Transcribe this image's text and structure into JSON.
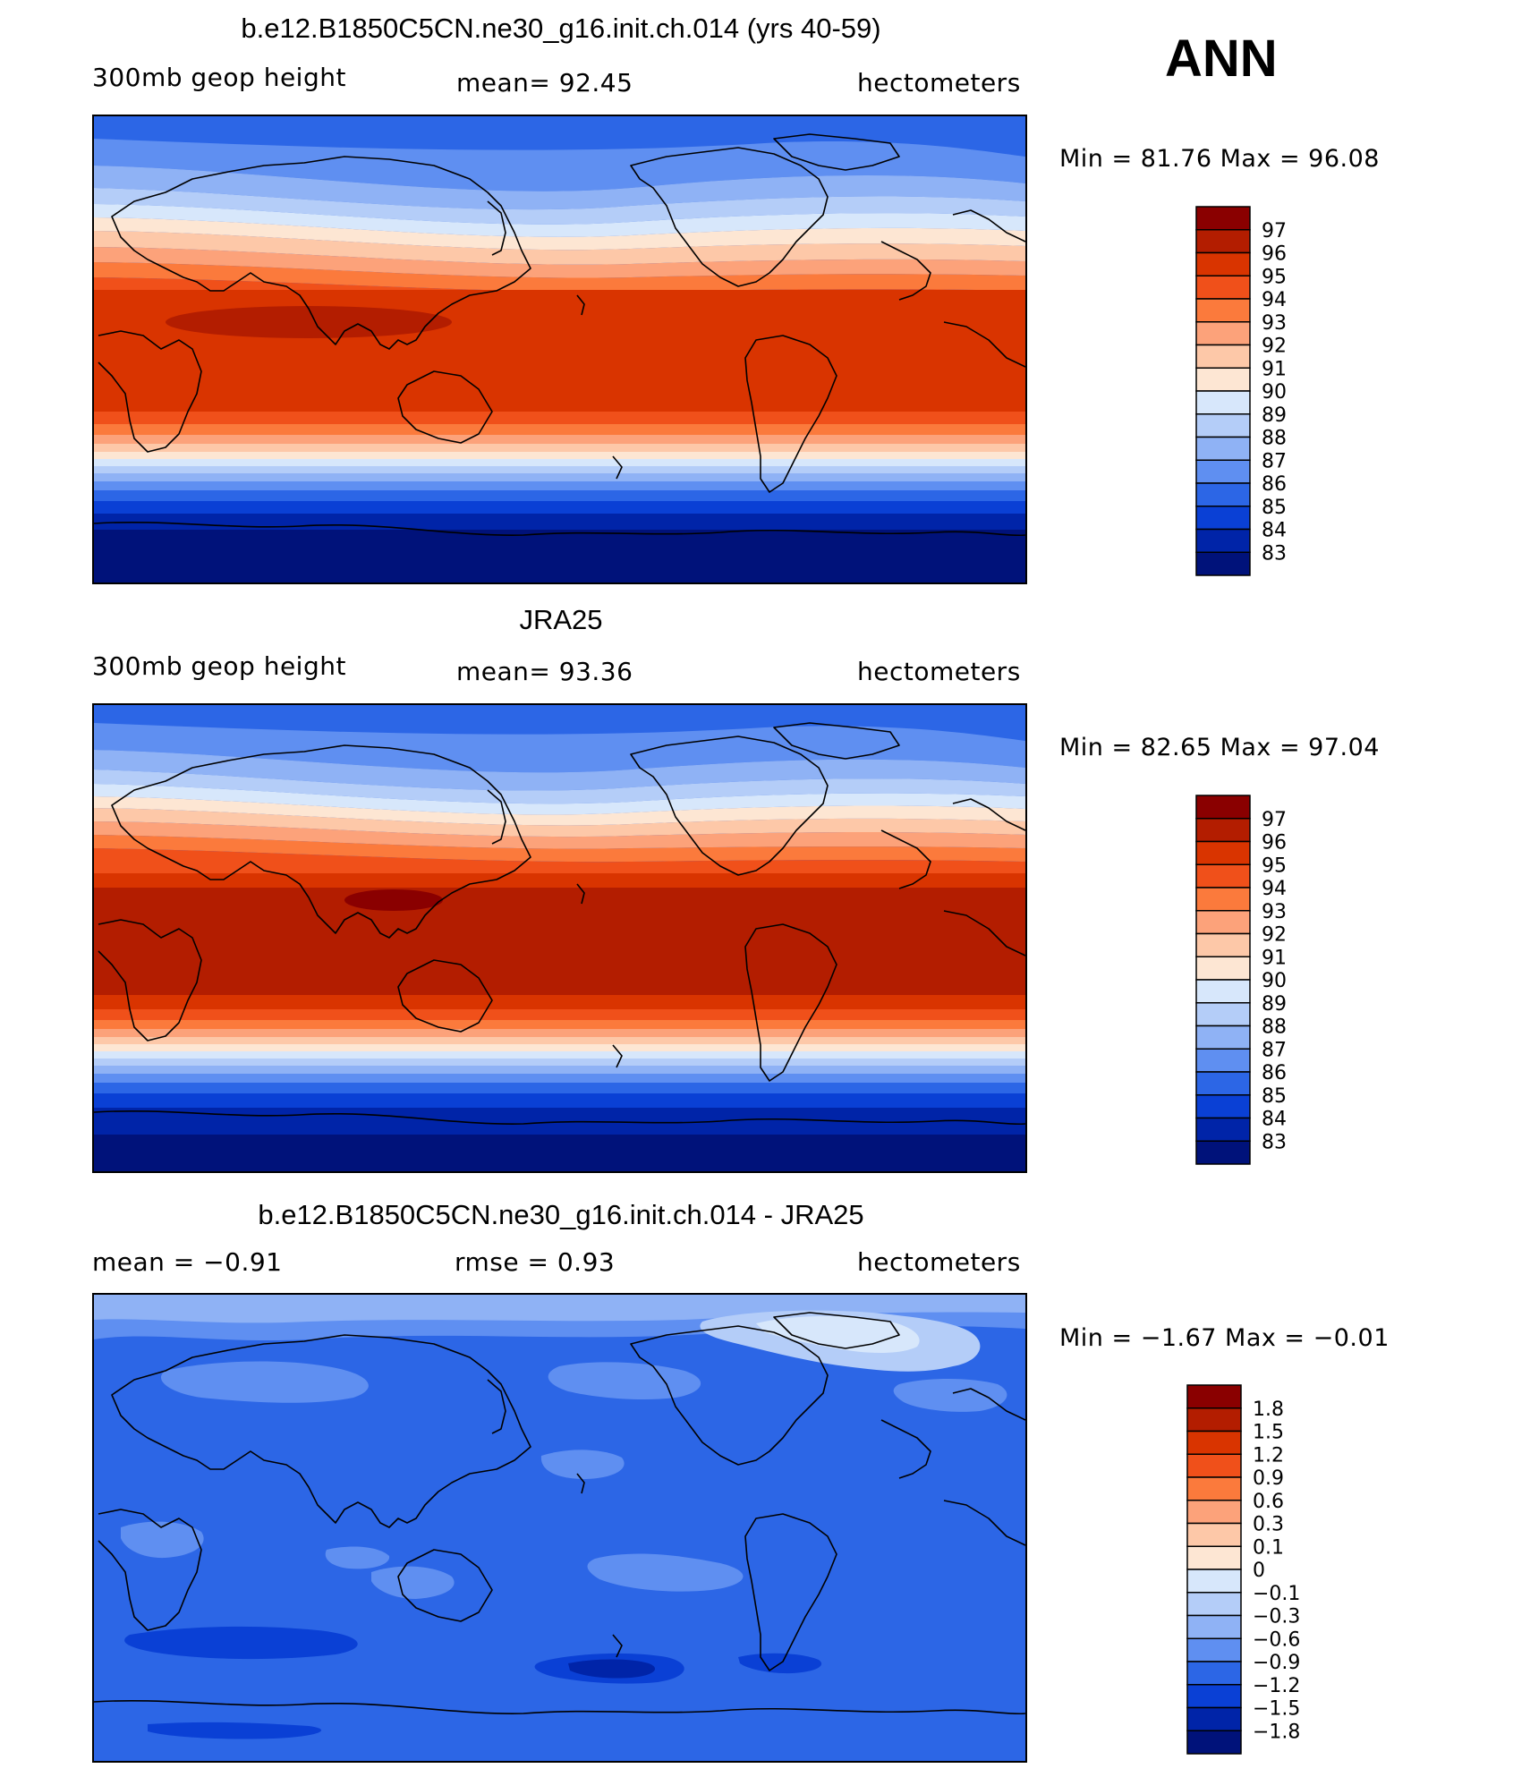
{
  "season": "ANN",
  "panels": [
    {
      "title": "b.e12.B1850C5CN.ne30_g16.init.ch.014 (yrs 40-59)",
      "left_label": "300mb geop height",
      "mid_label": "mean=   92.45",
      "right_label": "hectometers",
      "minmax": "Min =   81.76 Max =   96.08",
      "colorbar_labels": [
        "97",
        "96",
        "95",
        "94",
        "93",
        "92",
        "91",
        "90",
        "89",
        "88",
        "87",
        "86",
        "85",
        "84",
        "83"
      ],
      "colors": [
        "#8a0000",
        "#b31d00",
        "#d93400",
        "#f0501a",
        "#fb7a3c",
        "#fca27a",
        "#fdc8a8",
        "#fde6d3",
        "#d7e7fb",
        "#b4cdf8",
        "#8fb2f5",
        "#5f8ff1",
        "#2c66e6",
        "#0a40d5",
        "#0024a8",
        "#00127a"
      ]
    },
    {
      "title": "JRA25",
      "left_label": "300mb geop height",
      "mid_label": "mean=   93.36",
      "right_label": "hectometers",
      "minmax": "Min =   82.65 Max =   97.04",
      "colorbar_labels": [
        "97",
        "96",
        "95",
        "94",
        "93",
        "92",
        "91",
        "90",
        "89",
        "88",
        "87",
        "86",
        "85",
        "84",
        "83"
      ],
      "colors": [
        "#8a0000",
        "#b31d00",
        "#d93400",
        "#f0501a",
        "#fb7a3c",
        "#fca27a",
        "#fdc8a8",
        "#fde6d3",
        "#d7e7fb",
        "#b4cdf8",
        "#8fb2f5",
        "#5f8ff1",
        "#2c66e6",
        "#0a40d5",
        "#0024a8",
        "#00127a"
      ]
    },
    {
      "title": "b.e12.B1850C5CN.ne30_g16.init.ch.014 - JRA25",
      "left_label": "mean =   −0.91",
      "mid_label": "rmse =    0.93",
      "right_label": "hectometers",
      "minmax": "Min =   −1.67 Max =   −0.01",
      "colorbar_labels": [
        "1.8",
        "1.5",
        "1.2",
        "0.9",
        "0.6",
        "0.3",
        "0.1",
        "0",
        "−0.1",
        "−0.3",
        "−0.6",
        "−0.9",
        "−1.2",
        "−1.5",
        "−1.8"
      ],
      "colors": [
        "#8a0000",
        "#b31d00",
        "#d93400",
        "#f0501a",
        "#fb7a3c",
        "#fca27a",
        "#fdc8a8",
        "#fde6d3",
        "#d7e7fb",
        "#b4cdf8",
        "#8fb2f5",
        "#5f8ff1",
        "#2c66e6",
        "#0a40d5",
        "#0024a8",
        "#00127a"
      ]
    }
  ]
}
